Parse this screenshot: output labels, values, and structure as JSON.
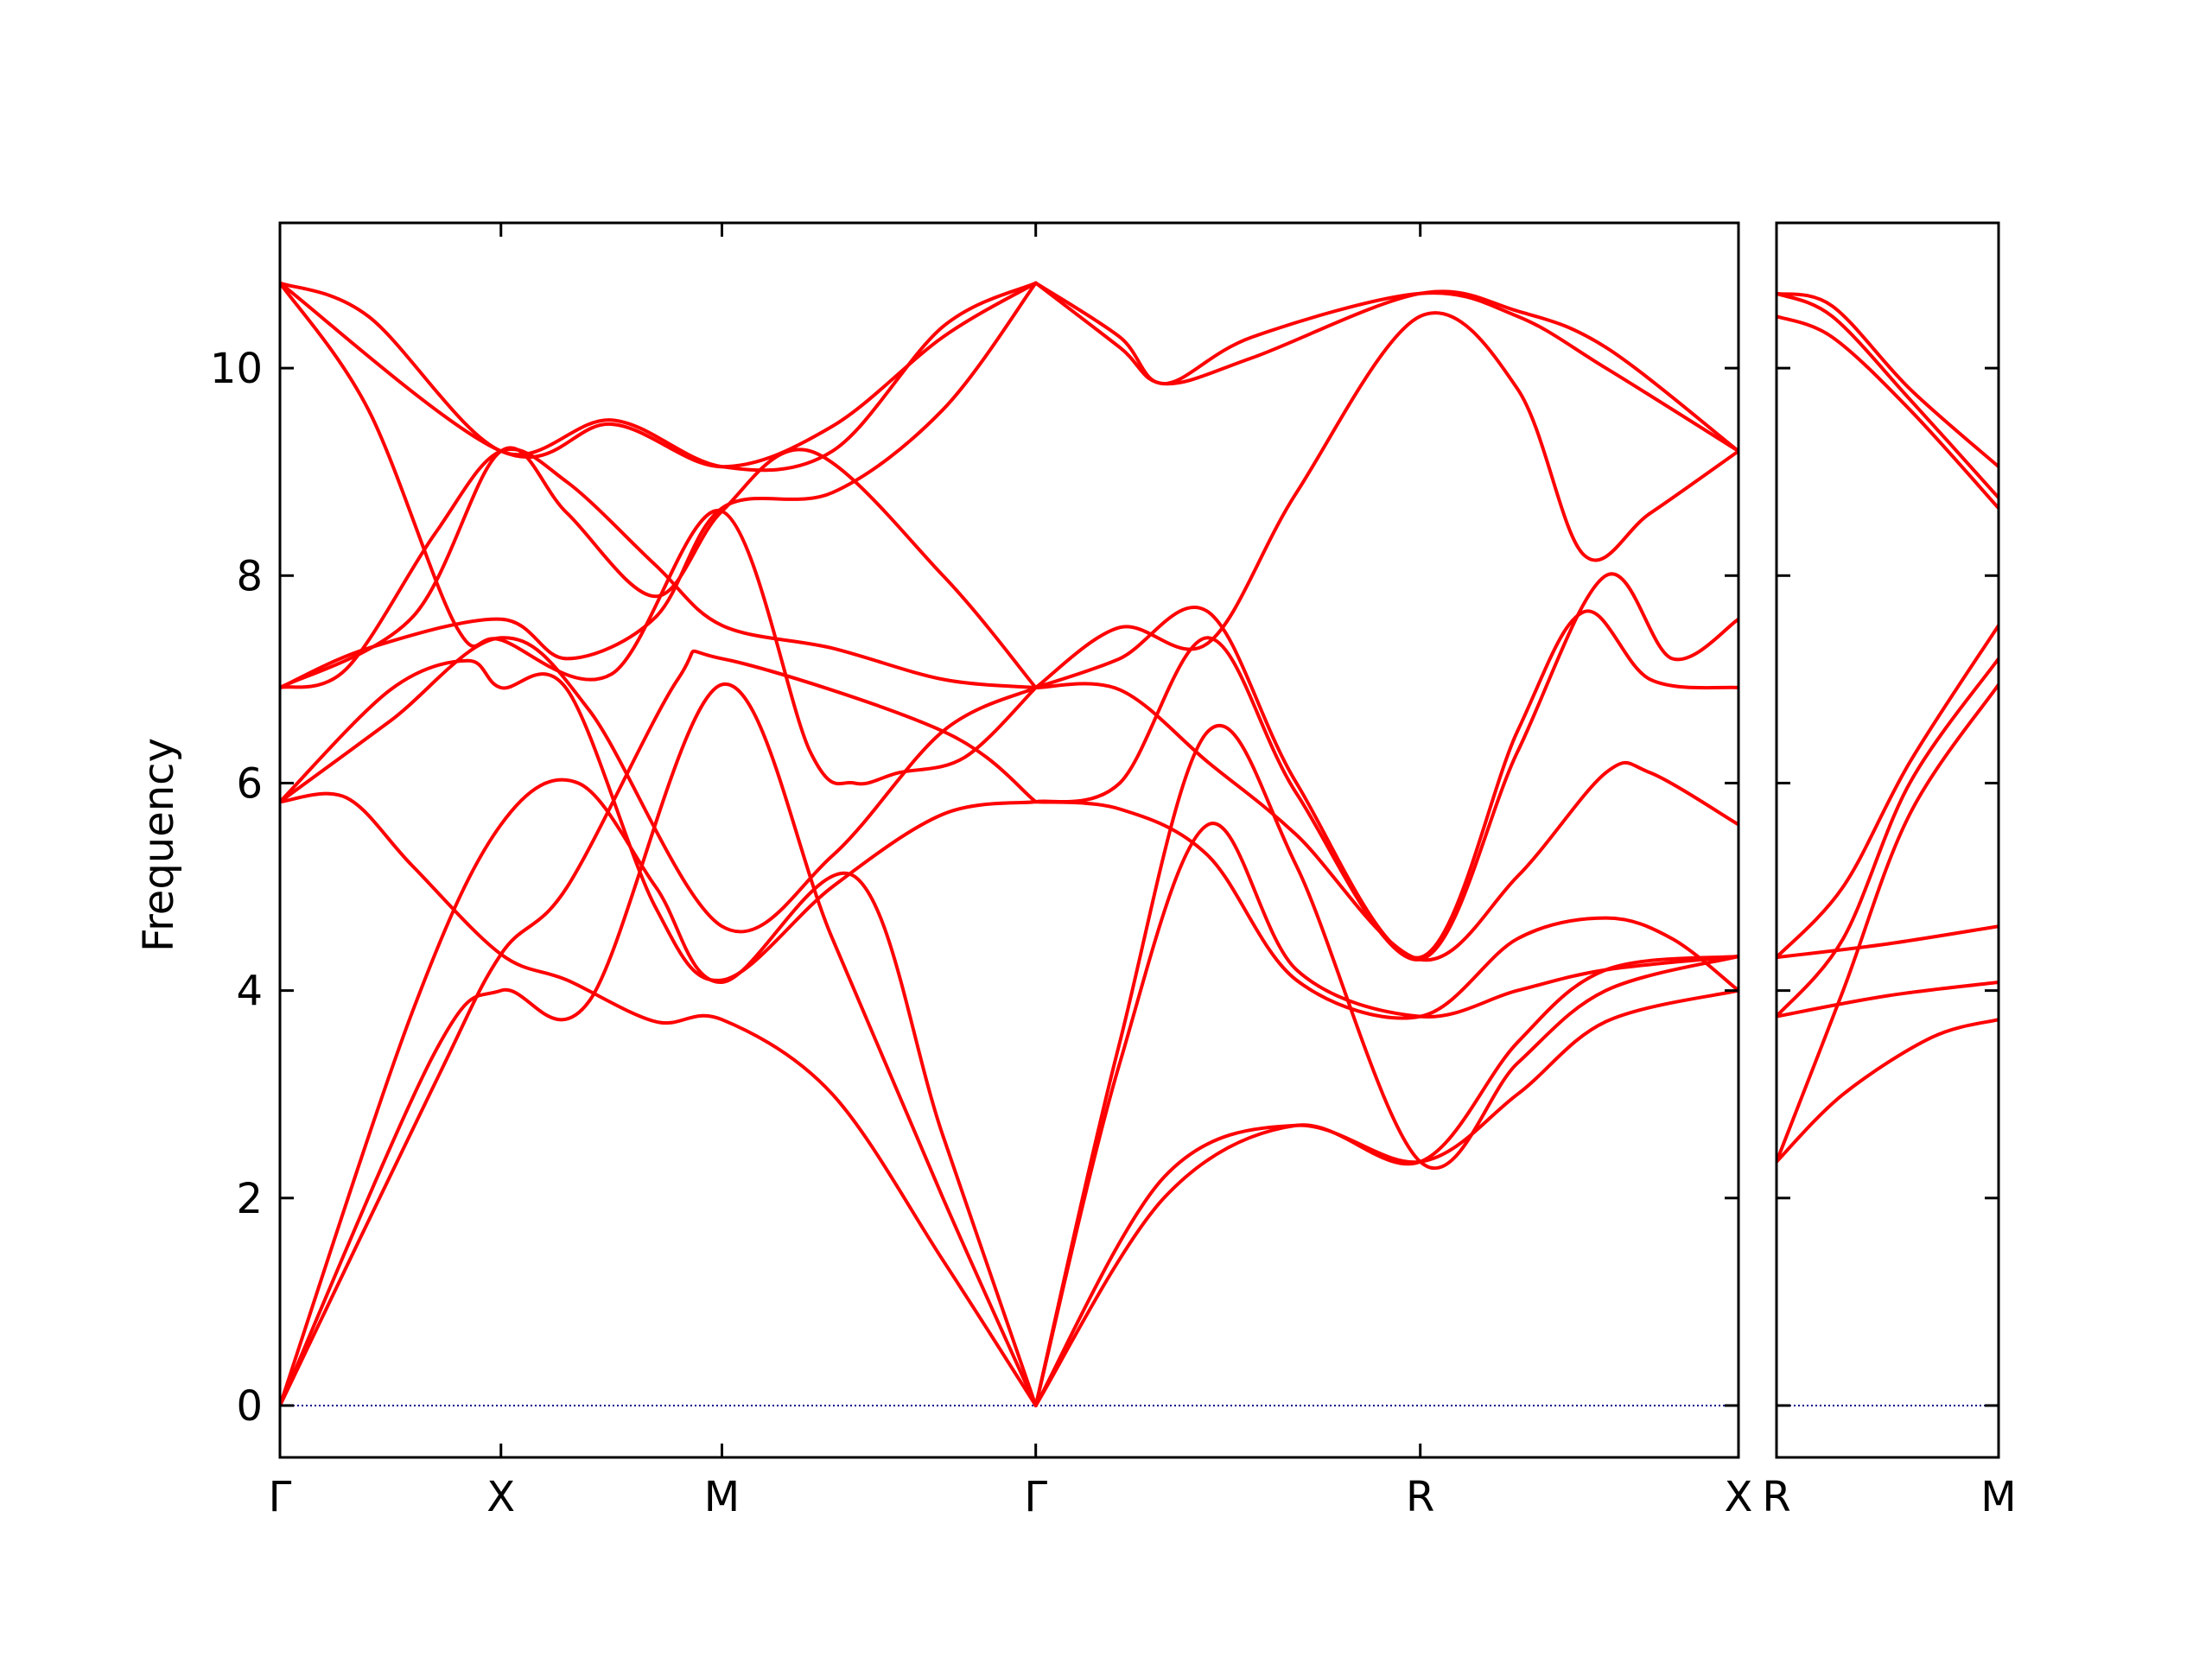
{
  "chart_data": {
    "type": "line",
    "title": "",
    "ylabel": "Frequency",
    "ylim": [
      -0.5,
      11.4
    ],
    "yticks": [
      0,
      2,
      4,
      6,
      8,
      10
    ],
    "grid": false,
    "legend": "none",
    "line_color": "#ff0000",
    "zero_line_color": "#00008b",
    "segment_labels": [
      "Γ",
      "X",
      "M",
      "Γ",
      "R",
      "X",
      "R",
      "M"
    ],
    "panels": [
      {
        "x_range": [
          0,
          6.6
        ],
        "ticks": [
          {
            "x": 0,
            "label": "Γ"
          },
          {
            "x": 1.0,
            "label": "X"
          },
          {
            "x": 2.0,
            "label": "M"
          },
          {
            "x": 3.42,
            "label": "Γ"
          },
          {
            "x": 5.16,
            "label": "R"
          },
          {
            "x": 6.6,
            "label": "X"
          }
        ],
        "series": [
          {
            "x": [
              0,
              1.0,
              1.5,
              2.0,
              2.5,
              3.0,
              3.42
            ],
            "values": [
              10.82,
              9.2,
              9.46,
              9.05,
              9.44,
              10.3,
              10.82
            ]
          },
          {
            "x": [
              0,
              0.4,
              1.0,
              1.5,
              2.0,
              2.5,
              3.0,
              3.42
            ],
            "values": [
              10.82,
              10.5,
              9.2,
              9.5,
              9.05,
              9.2,
              10.4,
              10.82
            ]
          },
          {
            "x": [
              0,
              0.4,
              0.8,
              1.0,
              1.5,
              2.0,
              2.4,
              2.6,
              2.8,
              3.1,
              3.42
            ],
            "values": [
              10.82,
              9.6,
              7.5,
              7.38,
              7.05,
              8.62,
              6.3,
              6.0,
              6.1,
              6.25,
              6.92
            ]
          },
          {
            "x": [
              0,
              0.3,
              0.7,
              1.0,
              1.3,
              1.7,
              2.0,
              2.5,
              3.0,
              3.42
            ],
            "values": [
              6.92,
              7.1,
              8.4,
              9.2,
              8.9,
              8.1,
              7.52,
              7.3,
              7.0,
              6.92
            ]
          },
          {
            "x": [
              0,
              0.4,
              1.0,
              1.3,
              1.7,
              2.0,
              2.5,
              3.0,
              3.42
            ],
            "values": [
              6.92,
              7.3,
              7.58,
              7.2,
              7.6,
              8.65,
              8.8,
              9.6,
              10.82
            ]
          },
          {
            "x": [
              0,
              0.6,
              1.0,
              1.3,
              1.7,
              2.0,
              2.4,
              3.0,
              3.42
            ],
            "values": [
              6.92,
              7.6,
              9.2,
              8.6,
              7.8,
              8.62,
              9.2,
              8.0,
              6.92
            ]
          },
          {
            "x": [
              0,
              0.5,
              0.85,
              1.0,
              1.3,
              1.7,
              2.0,
              2.5,
              3.0,
              3.42
            ],
            "values": [
              5.82,
              6.9,
              7.18,
              6.92,
              6.9,
              4.8,
              4.1,
              5.0,
              5.7,
              5.82
            ]
          },
          {
            "x": [
              0,
              0.5,
              1.0,
              1.4,
              2.0,
              2.5,
              3.0,
              3.42
            ],
            "values": [
              5.82,
              6.6,
              7.4,
              6.7,
              4.62,
              5.3,
              6.5,
              6.92
            ]
          },
          {
            "x": [
              0,
              0.3,
              0.6,
              1.0,
              1.3,
              1.7,
              2.0,
              2.5,
              3.0,
              3.42
            ],
            "values": [
              5.82,
              5.86,
              5.2,
              4.35,
              4.1,
              3.7,
              3.72,
              3.0,
              1.4,
              0.0
            ]
          },
          {
            "x": [
              0,
              0.6,
              1.0,
              1.35,
              1.7,
              2.0,
              2.6,
              3.0,
              3.42
            ],
            "values": [
              0.0,
              3.8,
              5.6,
              6.0,
              5.0,
              4.08,
              5.1,
              2.6,
              0.0
            ]
          },
          {
            "x": [
              0,
              0.7,
              1.0,
              1.4,
              2.0,
              2.5,
              3.0,
              3.42
            ],
            "values": [
              0.0,
              3.4,
              4.0,
              3.9,
              6.95,
              4.5,
              2.0,
              0.0
            ]
          },
          {
            "x": [
              0,
              0.7,
              1.0,
              1.3,
              1.8,
              2.0,
              3.0,
              3.42
            ],
            "values": [
              0.0,
              3.1,
              4.35,
              5.0,
              7.0,
              7.2,
              6.5,
              5.82
            ]
          },
          {
            "x": [
              3.42,
              3.8,
              4.0,
              4.4,
              5.16,
              5.6,
              6.0,
              6.6
            ],
            "values": [
              10.82,
              10.3,
              9.85,
              10.3,
              10.72,
              10.5,
              10.0,
              9.2
            ]
          },
          {
            "x": [
              3.42,
              3.8,
              4.0,
              4.4,
              5.16,
              5.6,
              6.0,
              6.6
            ],
            "values": [
              10.82,
              10.2,
              9.85,
              10.1,
              10.72,
              10.55,
              10.2,
              9.2
            ]
          },
          {
            "x": [
              3.42,
              3.8,
              4.2,
              4.6,
              5.16,
              5.6,
              5.9,
              6.2,
              6.6
            ],
            "values": [
              6.92,
              7.5,
              7.35,
              8.8,
              10.5,
              9.8,
              8.2,
              8.6,
              9.2
            ]
          },
          {
            "x": [
              3.42,
              3.8,
              4.2,
              4.6,
              5.16,
              5.6,
              5.9,
              6.2,
              6.6
            ],
            "values": [
              6.92,
              7.2,
              7.65,
              6.0,
              4.32,
              6.5,
              7.65,
              7.0,
              6.92
            ]
          },
          {
            "x": [
              3.42,
              3.8,
              4.2,
              4.6,
              5.16,
              5.6,
              6.0,
              6.3,
              6.6
            ],
            "values": [
              5.82,
              6.0,
              7.4,
              5.9,
              4.3,
              6.3,
              8.0,
              7.2,
              7.58
            ]
          },
          {
            "x": [
              3.42,
              3.8,
              4.2,
              4.6,
              5.16,
              5.6,
              6.0,
              6.2,
              6.6
            ],
            "values": [
              6.92,
              6.9,
              6.2,
              5.5,
              4.3,
              5.1,
              6.1,
              6.1,
              5.6
            ]
          },
          {
            "x": [
              3.42,
              3.8,
              4.2,
              4.6,
              5.16,
              5.6,
              6.0,
              6.3,
              6.6
            ],
            "values": [
              5.82,
              5.75,
              5.3,
              4.1,
              3.75,
              4.5,
              4.7,
              4.5,
              4.0
            ]
          },
          {
            "x": [
              3.42,
              3.8,
              4.2,
              4.6,
              5.16,
              5.6,
              6.0,
              6.6
            ],
            "values": [
              0.0,
              3.5,
              6.5,
              5.2,
              2.35,
              3.3,
              4.0,
              4.33
            ]
          },
          {
            "x": [
              3.42,
              3.8,
              4.2,
              4.6,
              5.16,
              5.6,
              6.0,
              6.6
            ],
            "values": [
              0.0,
              3.3,
              5.6,
              4.2,
              3.75,
              4.0,
              4.2,
              4.33
            ]
          },
          {
            "x": [
              3.42,
              4.0,
              4.6,
              5.16,
              5.6,
              6.0,
              6.6
            ],
            "values": [
              0.0,
              2.0,
              2.7,
              2.35,
              3.5,
              4.2,
              4.33
            ]
          },
          {
            "x": [
              3.42,
              4.0,
              4.6,
              5.16,
              5.6,
              6.0,
              6.6
            ],
            "values": [
              0.0,
              2.2,
              2.7,
              2.35,
              3.0,
              3.7,
              4.0
            ]
          }
        ]
      },
      {
        "x_range": [
          0,
          1.0
        ],
        "ticks": [
          {
            "x": 0,
            "label": "R"
          },
          {
            "x": 1.0,
            "label": "M"
          }
        ],
        "series": [
          {
            "x": [
              0,
              0.25,
              0.6,
              1.0
            ],
            "values": [
              10.72,
              10.6,
              9.8,
              9.05
            ]
          },
          {
            "x": [
              0,
              0.25,
              0.6,
              1.0
            ],
            "values": [
              10.72,
              10.5,
              9.7,
              8.75
            ]
          },
          {
            "x": [
              0,
              0.25,
              0.6,
              1.0
            ],
            "values": [
              10.5,
              10.3,
              9.6,
              8.65
            ]
          },
          {
            "x": [
              0,
              0.3,
              0.6,
              1.0
            ],
            "values": [
              4.32,
              5.0,
              6.2,
              7.52
            ]
          },
          {
            "x": [
              0,
              0.3,
              0.6,
              1.0
            ],
            "values": [
              3.75,
              4.5,
              6.0,
              7.2
            ]
          },
          {
            "x": [
              0,
              0.3,
              0.6,
              1.0
            ],
            "values": [
              2.35,
              4.0,
              5.7,
              6.95
            ]
          },
          {
            "x": [
              0,
              0.5,
              1.0
            ],
            "values": [
              4.32,
              4.45,
              4.62
            ]
          },
          {
            "x": [
              0,
              0.5,
              1.0
            ],
            "values": [
              3.75,
              3.95,
              4.08
            ]
          },
          {
            "x": [
              0,
              0.3,
              0.7,
              1.0
            ],
            "values": [
              2.35,
              3.0,
              3.55,
              3.72
            ]
          }
        ]
      }
    ]
  }
}
